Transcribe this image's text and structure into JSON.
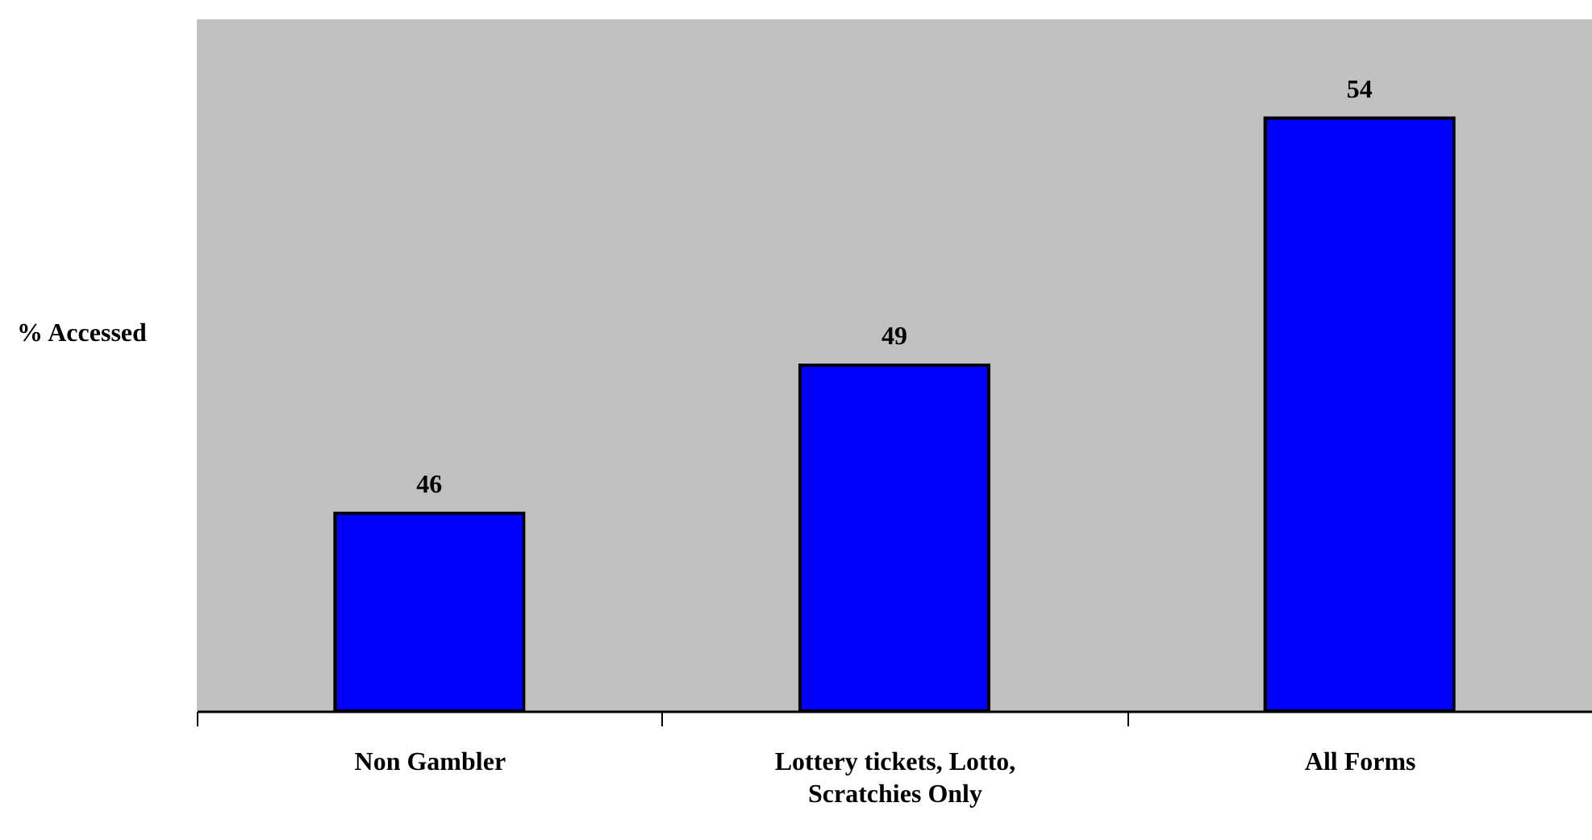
{
  "chart_data": {
    "type": "bar",
    "ylabel": "% Accessed",
    "categories": [
      "Non Gambler",
      "Lottery tickets, Lotto, Scratchies Only",
      "All Forms"
    ],
    "values": [
      46,
      49,
      54
    ],
    "color": "#0000ff",
    "ylim": [
      42,
      56
    ],
    "data_labels": true,
    "tick_labels": "x"
  }
}
